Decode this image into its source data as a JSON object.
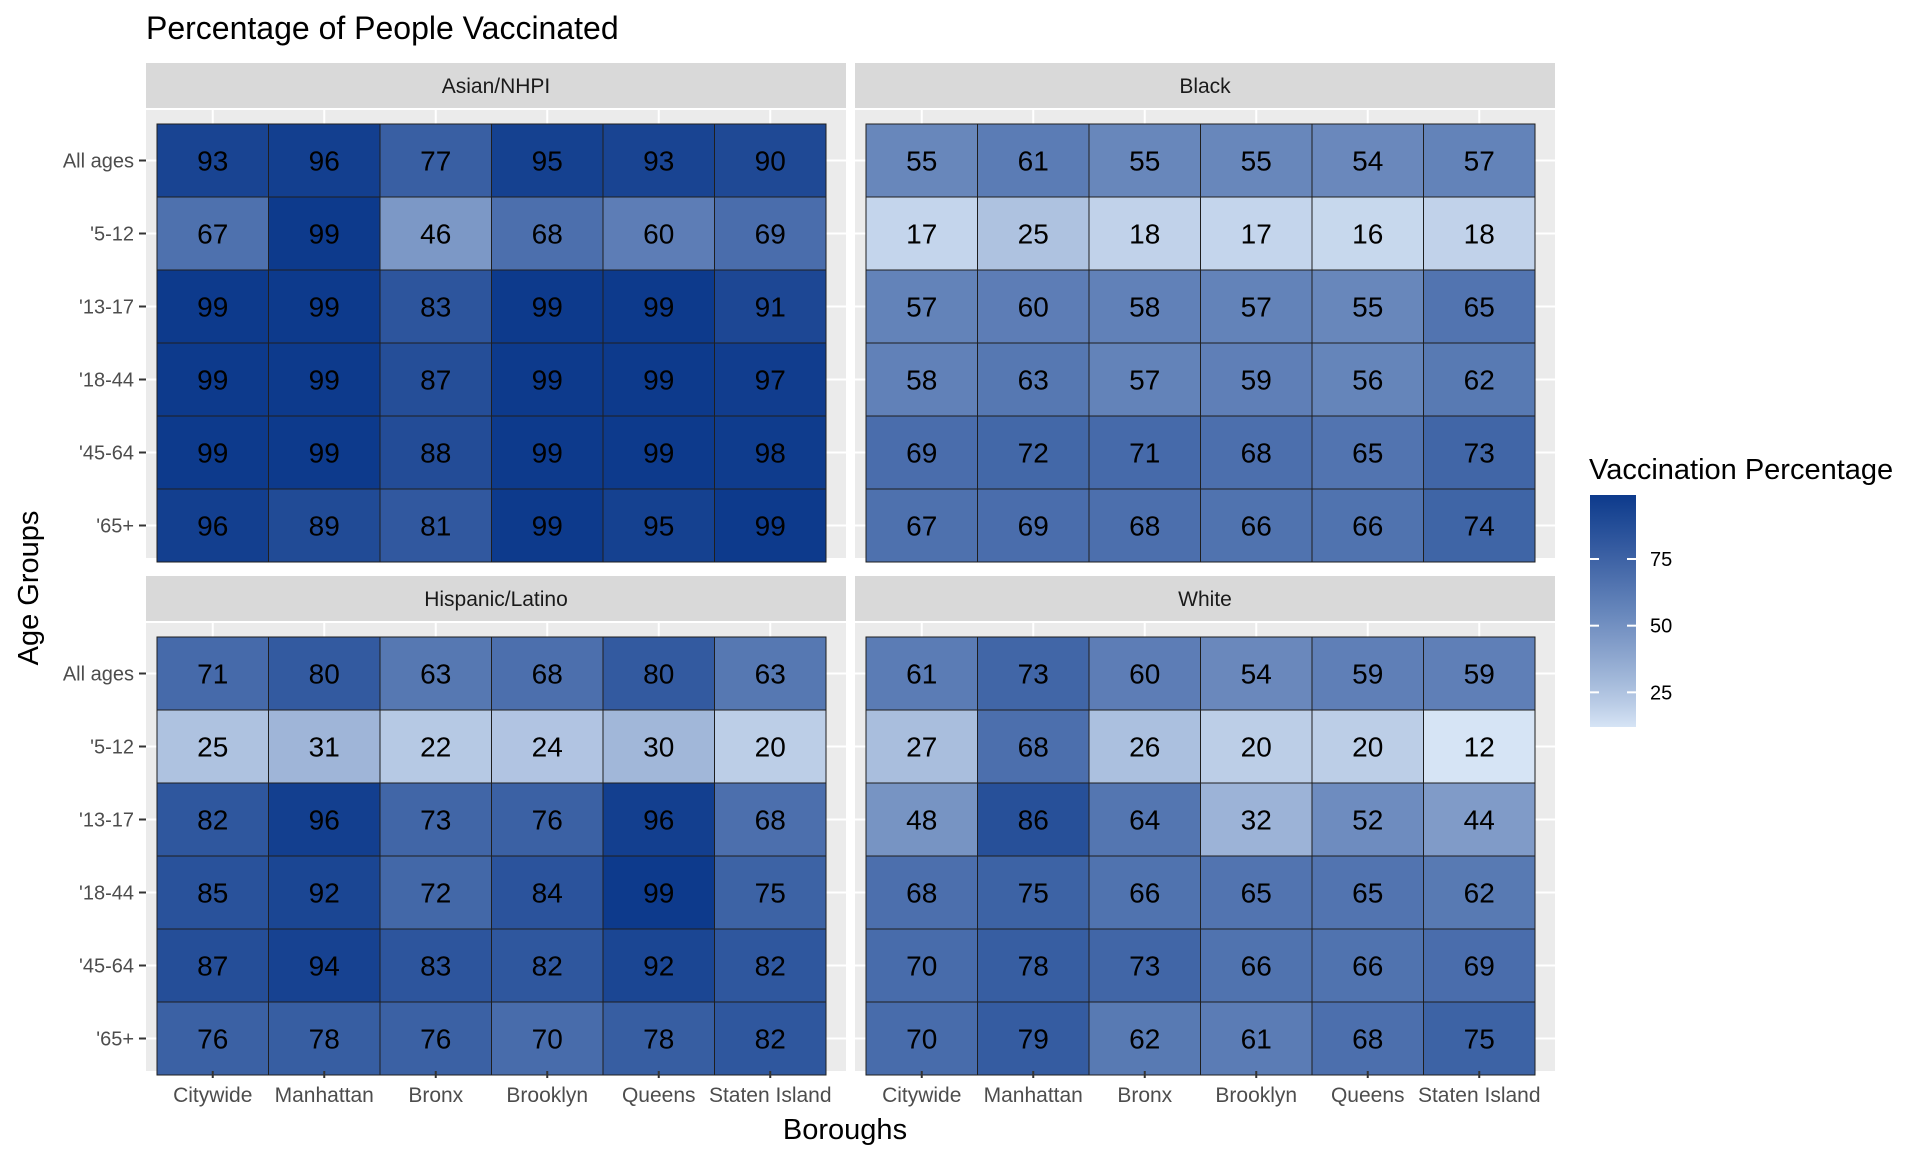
{
  "chart_data": {
    "type": "heatmap",
    "title": "Percentage of People Vaccinated",
    "xlabel": "Boroughs",
    "ylabel": "Age Groups",
    "x_categories": [
      "Citywide",
      "Manhattan",
      "Bronx",
      "Brooklyn",
      "Queens",
      "Staten Island"
    ],
    "y_categories": [
      "All ages",
      "'5-12",
      "'13-17",
      "'18-44",
      "'45-64",
      "'65+"
    ],
    "legend": {
      "title": "Vaccination Percentage",
      "position": "right",
      "ticks": [
        25,
        50,
        75
      ],
      "range": [
        12,
        99
      ],
      "color_low": "#d6e4f5",
      "color_high": "#0d3a8c"
    },
    "grid": true,
    "panels": [
      {
        "name": "Asian/NHPI",
        "values": [
          [
            93,
            96,
            77,
            95,
            93,
            90
          ],
          [
            67,
            99,
            46,
            68,
            60,
            69
          ],
          [
            99,
            99,
            83,
            99,
            99,
            91
          ],
          [
            99,
            99,
            87,
            99,
            99,
            97
          ],
          [
            99,
            99,
            88,
            99,
            99,
            98
          ],
          [
            96,
            89,
            81,
            99,
            95,
            99
          ]
        ]
      },
      {
        "name": "Black",
        "values": [
          [
            55,
            61,
            55,
            55,
            54,
            57
          ],
          [
            17,
            25,
            18,
            17,
            16,
            18
          ],
          [
            57,
            60,
            58,
            57,
            55,
            65
          ],
          [
            58,
            63,
            57,
            59,
            56,
            62
          ],
          [
            69,
            72,
            71,
            68,
            65,
            73
          ],
          [
            67,
            69,
            68,
            66,
            66,
            74
          ]
        ]
      },
      {
        "name": "Hispanic/Latino",
        "values": [
          [
            71,
            80,
            63,
            68,
            80,
            63
          ],
          [
            25,
            31,
            22,
            24,
            30,
            20
          ],
          [
            82,
            96,
            73,
            76,
            96,
            68
          ],
          [
            85,
            92,
            72,
            84,
            99,
            75
          ],
          [
            87,
            94,
            83,
            82,
            92,
            82
          ],
          [
            76,
            78,
            76,
            70,
            78,
            82
          ]
        ]
      },
      {
        "name": "White",
        "values": [
          [
            61,
            73,
            60,
            54,
            59,
            59
          ],
          [
            27,
            68,
            26,
            20,
            20,
            12
          ],
          [
            48,
            86,
            64,
            32,
            52,
            44
          ],
          [
            68,
            75,
            66,
            65,
            65,
            62
          ],
          [
            70,
            78,
            73,
            66,
            66,
            69
          ],
          [
            70,
            79,
            62,
            61,
            68,
            75
          ]
        ]
      }
    ]
  }
}
